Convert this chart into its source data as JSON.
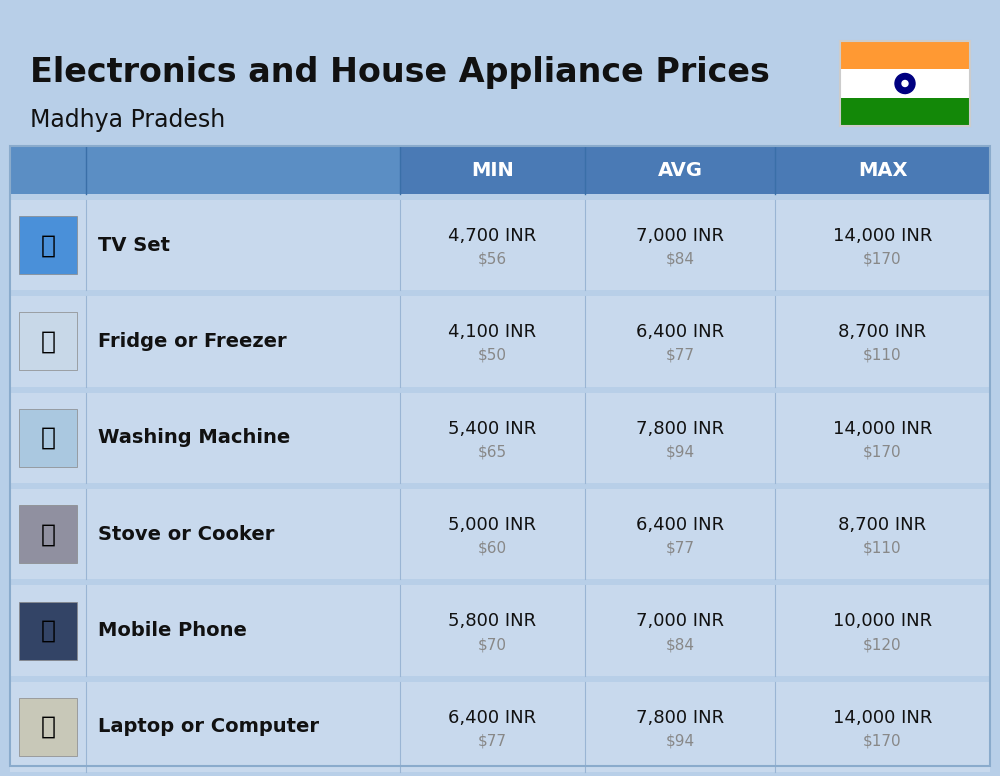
{
  "title_line1": "Electronics and House Appliance Prices",
  "subtitle": "Madhya Pradesh",
  "background_color": "#b8cfe8",
  "header_left_color": "#5b8ec4",
  "header_right_color": "#4a7ab5",
  "row_bg_color": "#c8d9ed",
  "row_alt_bg_color": "#c8d9ed",
  "separator_color": "#9ab5d4",
  "white_sep_color": "#b8cfe8",
  "col_headers": [
    "MIN",
    "AVG",
    "MAX"
  ],
  "items": [
    {
      "name": "TV Set",
      "min_inr": "4,700 INR",
      "min_usd": "$56",
      "avg_inr": "7,000 INR",
      "avg_usd": "$84",
      "max_inr": "14,000 INR",
      "max_usd": "$170"
    },
    {
      "name": "Fridge or Freezer",
      "min_inr": "4,100 INR",
      "min_usd": "$50",
      "avg_inr": "6,400 INR",
      "avg_usd": "$77",
      "max_inr": "8,700 INR",
      "max_usd": "$110"
    },
    {
      "name": "Washing Machine",
      "min_inr": "5,400 INR",
      "min_usd": "$65",
      "avg_inr": "7,800 INR",
      "avg_usd": "$94",
      "max_inr": "14,000 INR",
      "max_usd": "$170"
    },
    {
      "name": "Stove or Cooker",
      "min_inr": "5,000 INR",
      "min_usd": "$60",
      "avg_inr": "6,400 INR",
      "avg_usd": "$77",
      "max_inr": "8,700 INR",
      "max_usd": "$110"
    },
    {
      "name": "Mobile Phone",
      "min_inr": "5,800 INR",
      "min_usd": "$70",
      "avg_inr": "7,000 INR",
      "avg_usd": "$84",
      "max_inr": "10,000 INR",
      "max_usd": "$120"
    },
    {
      "name": "Laptop or Computer",
      "min_inr": "6,400 INR",
      "min_usd": "$77",
      "avg_inr": "7,800 INR",
      "avg_usd": "$94",
      "max_inr": "14,000 INR",
      "max_usd": "$170"
    }
  ]
}
